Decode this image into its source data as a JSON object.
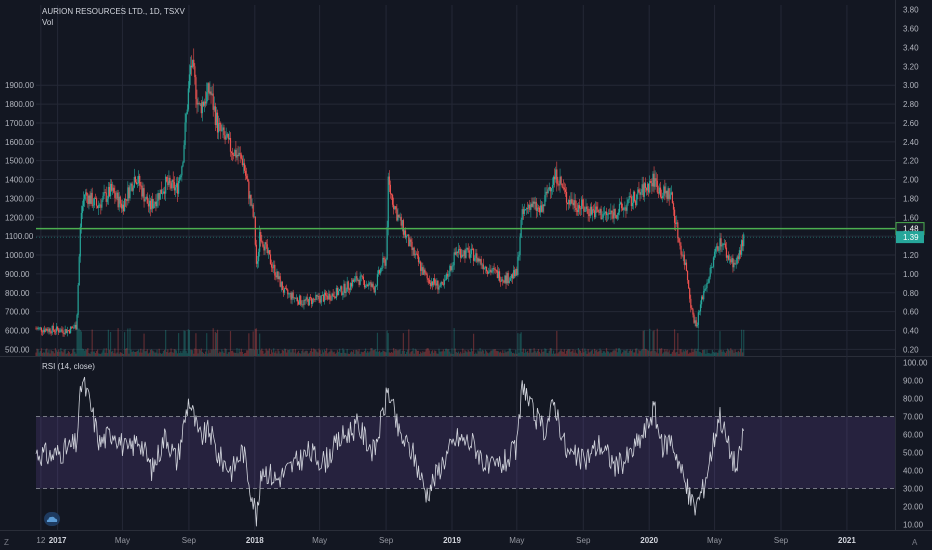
{
  "header": {
    "title": "AURION RESOURCES LTD., 1D, TSXV",
    "volume_label": "Vol",
    "rsi_label": "RSI (14, close)"
  },
  "buttons": {
    "zoom": "Z",
    "auto": "A"
  },
  "colors": {
    "background": "#131722",
    "grid": "#242836",
    "up": "#26a69a",
    "down": "#ef5350",
    "rsi_line": "#d1d4dc",
    "rsi_band": "#7e57c2",
    "level_line": "#4caf50",
    "badge_green": "#26a69a"
  },
  "icons": {
    "logo": "cloud-logo-icon"
  },
  "chart_data": [
    {
      "type": "candlestick",
      "title": "AURION RESOURCES LTD., 1D, TSXV",
      "left_axis_ticks": [
        "1900.00",
        "1800.00",
        "1700.00",
        "1600.00",
        "1500.00",
        "1400.00",
        "1300.00",
        "1200.00",
        "1100.00",
        "1000.00",
        "900.00",
        "800.00",
        "700.00",
        "600.00",
        "500.00"
      ],
      "left_axis_values": [
        1900,
        1800,
        1700,
        1600,
        1500,
        1400,
        1300,
        1200,
        1100,
        1000,
        900,
        800,
        700,
        600,
        500
      ],
      "right_axis_ticks": [
        "3.80",
        "3.60",
        "3.40",
        "3.20",
        "3.00",
        "2.80",
        "2.60",
        "2.40",
        "2.20",
        "2.00",
        "1.80",
        "1.60",
        "1.40",
        "1.20",
        "1.00",
        "0.80",
        "0.60",
        "0.40",
        "0.20"
      ],
      "right_axis_values": [
        3.8,
        3.6,
        3.4,
        3.2,
        3.0,
        2.8,
        2.6,
        2.4,
        2.2,
        2.0,
        1.8,
        1.6,
        1.4,
        1.2,
        1.0,
        0.8,
        0.6,
        0.4,
        0.2
      ],
      "ylim_right": [
        0.13,
        3.85
      ],
      "x_ticks": [
        "12",
        "2017",
        "May",
        "Sep",
        "2018",
        "May",
        "Sep",
        "2019",
        "May",
        "Sep",
        "2020",
        "May",
        "Sep",
        "2021"
      ],
      "x_tick_dates": [
        "2016-12-01",
        "2017-01-01",
        "2017-05-01",
        "2017-09-01",
        "2018-01-01",
        "2018-05-01",
        "2018-09-01",
        "2019-01-01",
        "2019-05-01",
        "2019-09-01",
        "2020-01-01",
        "2020-05-01",
        "2020-09-01",
        "2021-01-01"
      ],
      "xlim": [
        "2016-11-22",
        "2021-03-31"
      ],
      "horizontal_level": 1.48,
      "price_badges": [
        {
          "label": "1.48",
          "value": 1.48
        },
        {
          "label": "1.39",
          "value": 1.39
        }
      ],
      "price_path": [
        {
          "date": "2016-11-22",
          "price": 0.42
        },
        {
          "date": "2016-12-20",
          "price": 0.41
        },
        {
          "date": "2017-01-20",
          "price": 0.4
        },
        {
          "date": "2017-02-05",
          "price": 0.45
        },
        {
          "date": "2017-02-13",
          "price": 1.62
        },
        {
          "date": "2017-02-20",
          "price": 1.85
        },
        {
          "date": "2017-03-15",
          "price": 1.72
        },
        {
          "date": "2017-04-10",
          "price": 1.88
        },
        {
          "date": "2017-05-01",
          "price": 1.72
        },
        {
          "date": "2017-05-25",
          "price": 2.05
        },
        {
          "date": "2017-06-20",
          "price": 1.7
        },
        {
          "date": "2017-07-20",
          "price": 1.95
        },
        {
          "date": "2017-08-10",
          "price": 1.9
        },
        {
          "date": "2017-08-20",
          "price": 2.2
        },
        {
          "date": "2017-09-01",
          "price": 3.0
        },
        {
          "date": "2017-09-05",
          "price": 3.25
        },
        {
          "date": "2017-09-20",
          "price": 2.75
        },
        {
          "date": "2017-10-10",
          "price": 2.95
        },
        {
          "date": "2017-10-25",
          "price": 2.55
        },
        {
          "date": "2017-11-15",
          "price": 2.35
        },
        {
          "date": "2017-12-10",
          "price": 2.2
        },
        {
          "date": "2017-12-31",
          "price": 1.55
        },
        {
          "date": "2018-01-05",
          "price": 1.0
        },
        {
          "date": "2018-01-10",
          "price": 1.45
        },
        {
          "date": "2018-01-25",
          "price": 1.2
        },
        {
          "date": "2018-02-25",
          "price": 0.8
        },
        {
          "date": "2018-04-01",
          "price": 0.7
        },
        {
          "date": "2018-05-10",
          "price": 0.75
        },
        {
          "date": "2018-06-10",
          "price": 0.82
        },
        {
          "date": "2018-07-10",
          "price": 0.95
        },
        {
          "date": "2018-08-10",
          "price": 0.85
        },
        {
          "date": "2018-08-25",
          "price": 1.1
        },
        {
          "date": "2018-09-01",
          "price": 1.15
        },
        {
          "date": "2018-09-05",
          "price": 1.95
        },
        {
          "date": "2018-09-20",
          "price": 1.65
        },
        {
          "date": "2018-10-15",
          "price": 1.3
        },
        {
          "date": "2018-11-15",
          "price": 0.95
        },
        {
          "date": "2018-12-15",
          "price": 0.85
        },
        {
          "date": "2019-01-10",
          "price": 1.25
        },
        {
          "date": "2019-02-10",
          "price": 1.2
        },
        {
          "date": "2019-03-10",
          "price": 1.05
        },
        {
          "date": "2019-04-10",
          "price": 0.95
        },
        {
          "date": "2019-05-01",
          "price": 1.0
        },
        {
          "date": "2019-05-10",
          "price": 1.6
        },
        {
          "date": "2019-05-25",
          "price": 1.75
        },
        {
          "date": "2019-06-15",
          "price": 1.65
        },
        {
          "date": "2019-07-01",
          "price": 1.95
        },
        {
          "date": "2019-07-15",
          "price": 2.05
        },
        {
          "date": "2019-08-01",
          "price": 1.8
        },
        {
          "date": "2019-09-01",
          "price": 1.7
        },
        {
          "date": "2019-10-15",
          "price": 1.62
        },
        {
          "date": "2019-11-15",
          "price": 1.7
        },
        {
          "date": "2019-12-15",
          "price": 1.85
        },
        {
          "date": "2020-01-10",
          "price": 2.0
        },
        {
          "date": "2020-01-25",
          "price": 1.85
        },
        {
          "date": "2020-02-10",
          "price": 1.85
        },
        {
          "date": "2020-02-25",
          "price": 1.35
        },
        {
          "date": "2020-03-10",
          "price": 1.05
        },
        {
          "date": "2020-03-20",
          "price": 0.6
        },
        {
          "date": "2020-03-28",
          "price": 0.45
        },
        {
          "date": "2020-04-10",
          "price": 0.8
        },
        {
          "date": "2020-04-25",
          "price": 1.05
        },
        {
          "date": "2020-05-05",
          "price": 1.3
        },
        {
          "date": "2020-05-15",
          "price": 1.35
        },
        {
          "date": "2020-05-25",
          "price": 1.18
        },
        {
          "date": "2020-06-10",
          "price": 1.1
        },
        {
          "date": "2020-06-20",
          "price": 1.3
        },
        {
          "date": "2020-06-25",
          "price": 1.39
        }
      ]
    },
    {
      "type": "line",
      "title": "RSI (14, close)",
      "y_ticks": [
        "100.00",
        "90.00",
        "80.00",
        "70.00",
        "60.00",
        "50.00",
        "40.00",
        "30.00",
        "20.00",
        "10.00"
      ],
      "y_tick_values": [
        100,
        90,
        80,
        70,
        60,
        50,
        40,
        30,
        20,
        10
      ],
      "ylim": [
        7,
        103
      ],
      "band": [
        30,
        70
      ],
      "rsi_path": [
        {
          "date": "2016-11-22",
          "rsi": 50
        },
        {
          "date": "2016-12-20",
          "rsi": 48
        },
        {
          "date": "2017-01-20",
          "rsi": 52
        },
        {
          "date": "2017-02-05",
          "rsi": 55
        },
        {
          "date": "2017-02-15",
          "rsi": 91
        },
        {
          "date": "2017-03-01",
          "rsi": 78
        },
        {
          "date": "2017-03-20",
          "rsi": 55
        },
        {
          "date": "2017-04-15",
          "rsi": 62
        },
        {
          "date": "2017-05-10",
          "rsi": 50
        },
        {
          "date": "2017-06-01",
          "rsi": 58
        },
        {
          "date": "2017-06-25",
          "rsi": 40
        },
        {
          "date": "2017-07-20",
          "rsi": 60
        },
        {
          "date": "2017-08-10",
          "rsi": 45
        },
        {
          "date": "2017-09-01",
          "rsi": 80
        },
        {
          "date": "2017-09-20",
          "rsi": 58
        },
        {
          "date": "2017-10-10",
          "rsi": 62
        },
        {
          "date": "2017-10-25",
          "rsi": 48
        },
        {
          "date": "2017-11-20",
          "rsi": 40
        },
        {
          "date": "2017-12-10",
          "rsi": 52
        },
        {
          "date": "2018-01-05",
          "rsi": 13
        },
        {
          "date": "2018-01-15",
          "rsi": 42
        },
        {
          "date": "2018-02-10",
          "rsi": 35
        },
        {
          "date": "2018-03-10",
          "rsi": 42
        },
        {
          "date": "2018-04-10",
          "rsi": 50
        },
        {
          "date": "2018-05-10",
          "rsi": 45
        },
        {
          "date": "2018-06-10",
          "rsi": 58
        },
        {
          "date": "2018-07-10",
          "rsi": 65
        },
        {
          "date": "2018-08-10",
          "rsi": 50
        },
        {
          "date": "2018-09-05",
          "rsi": 85
        },
        {
          "date": "2018-09-25",
          "rsi": 60
        },
        {
          "date": "2018-10-20",
          "rsi": 50
        },
        {
          "date": "2018-11-15",
          "rsi": 27
        },
        {
          "date": "2018-12-15",
          "rsi": 45
        },
        {
          "date": "2019-01-10",
          "rsi": 58
        },
        {
          "date": "2019-02-10",
          "rsi": 55
        },
        {
          "date": "2019-03-10",
          "rsi": 40
        },
        {
          "date": "2019-04-10",
          "rsi": 45
        },
        {
          "date": "2019-05-01",
          "rsi": 52
        },
        {
          "date": "2019-05-12",
          "rsi": 90
        },
        {
          "date": "2019-05-25",
          "rsi": 75
        },
        {
          "date": "2019-06-20",
          "rsi": 62
        },
        {
          "date": "2019-07-10",
          "rsi": 78
        },
        {
          "date": "2019-08-01",
          "rsi": 50
        },
        {
          "date": "2019-09-01",
          "rsi": 45
        },
        {
          "date": "2019-10-01",
          "rsi": 55
        },
        {
          "date": "2019-11-01",
          "rsi": 42
        },
        {
          "date": "2019-11-25",
          "rsi": 48
        },
        {
          "date": "2019-12-25",
          "rsi": 62
        },
        {
          "date": "2020-01-10",
          "rsi": 75
        },
        {
          "date": "2020-01-25",
          "rsi": 52
        },
        {
          "date": "2020-02-10",
          "rsi": 58
        },
        {
          "date": "2020-02-25",
          "rsi": 45
        },
        {
          "date": "2020-03-10",
          "rsi": 30
        },
        {
          "date": "2020-03-25",
          "rsi": 19
        },
        {
          "date": "2020-04-10",
          "rsi": 30
        },
        {
          "date": "2020-04-25",
          "rsi": 50
        },
        {
          "date": "2020-05-10",
          "rsi": 72
        },
        {
          "date": "2020-05-25",
          "rsi": 55
        },
        {
          "date": "2020-06-12",
          "rsi": 40
        },
        {
          "date": "2020-06-25",
          "rsi": 65
        }
      ]
    }
  ]
}
